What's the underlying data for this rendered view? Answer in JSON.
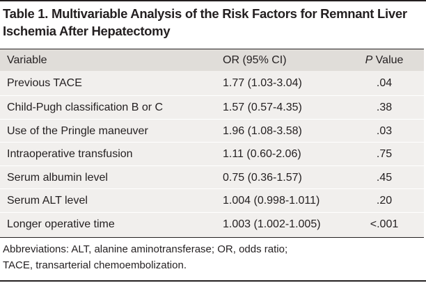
{
  "caption": {
    "line1": "Table 1. Multivariable Analysis of the Risk Factors for Remnant Liver",
    "line2": "Ischemia After Hepatectomy"
  },
  "table": {
    "headers": {
      "variable": "Variable",
      "or": "OR (95% CI)",
      "p_italic": "P",
      "p_rest": " Value"
    },
    "rows": [
      {
        "variable": "Previous TACE",
        "or": "1.77 (1.03-3.04)",
        "p": ".04"
      },
      {
        "variable": "Child-Pugh classification B or C",
        "or": "1.57 (0.57-4.35)",
        "p": ".38"
      },
      {
        "variable": "Use of the Pringle maneuver",
        "or": "1.96 (1.08-3.58)",
        "p": ".03"
      },
      {
        "variable": "Intraoperative transfusion",
        "or": "1.11 (0.60-2.06)",
        "p": ".75"
      },
      {
        "variable": "Serum albumin level",
        "or": "0.75 (0.36-1.57)",
        "p": ".45"
      },
      {
        "variable": "Serum ALT level",
        "or": "1.004 (0.998-1.011)",
        "p": ".20"
      },
      {
        "variable": "Longer operative time",
        "or": "1.003 (1.002-1.005)",
        "p": "<.001"
      }
    ]
  },
  "footnote": {
    "line1": "Abbreviations: ALT, alanine aminotransferase; OR, odds ratio;",
    "line2": "TACE, transarterial chemoembolization."
  }
}
